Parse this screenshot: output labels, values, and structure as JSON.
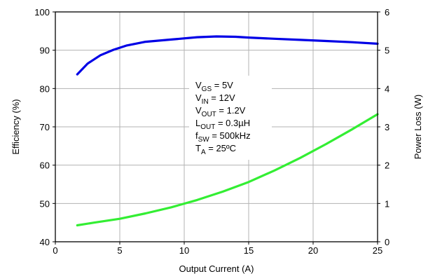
{
  "chart_data": {
    "type": "line",
    "title": "",
    "xlabel": "Output Current (A)",
    "ylabel": "Efficiency (%)",
    "y2label": "Power Loss (W)",
    "xlim": [
      0,
      25
    ],
    "ylim": [
      40,
      100
    ],
    "y2lim": [
      0,
      6
    ],
    "xticks": [
      "0",
      "5",
      "10",
      "15",
      "20",
      "25"
    ],
    "yticks": [
      "40",
      "50",
      "60",
      "70",
      "80",
      "90",
      "100"
    ],
    "y2ticks": [
      "0",
      "1",
      "2",
      "3",
      "4",
      "5",
      "6"
    ],
    "grid": true,
    "series": [
      {
        "axis": "left",
        "color": "#0000e6",
        "x": [
          1.7,
          2.5,
          3.5,
          4.5,
          5.5,
          7,
          9,
          11,
          12.5,
          14,
          15,
          17,
          19,
          21,
          23,
          25
        ],
        "y": [
          83.7,
          86.5,
          88.7,
          90.1,
          91.2,
          92.2,
          92.8,
          93.4,
          93.6,
          93.5,
          93.3,
          93.0,
          92.7,
          92.4,
          92.1,
          91.7
        ]
      },
      {
        "axis": "right",
        "color": "#33ee33",
        "x": [
          1.7,
          3,
          5,
          7,
          9,
          11,
          13,
          15,
          17,
          19,
          21,
          23,
          25
        ],
        "y": [
          0.43,
          0.5,
          0.6,
          0.74,
          0.9,
          1.09,
          1.31,
          1.56,
          1.86,
          2.19,
          2.55,
          2.93,
          3.33
        ]
      }
    ],
    "annotation": [
      {
        "main": "V",
        "sub": "GS",
        "rest": " = 5V"
      },
      {
        "main": "V",
        "sub": "IN",
        "rest": " = 12V"
      },
      {
        "main": "V",
        "sub": "OUT",
        "rest": " = 1.2V"
      },
      {
        "main": "L",
        "sub": "OUT",
        "rest": " = 0.3µH"
      },
      {
        "main": "f",
        "sub": "SW",
        "rest": " = 500kHz"
      },
      {
        "main": "T",
        "sub": "A",
        "rest": " = 25ºC"
      }
    ]
  }
}
